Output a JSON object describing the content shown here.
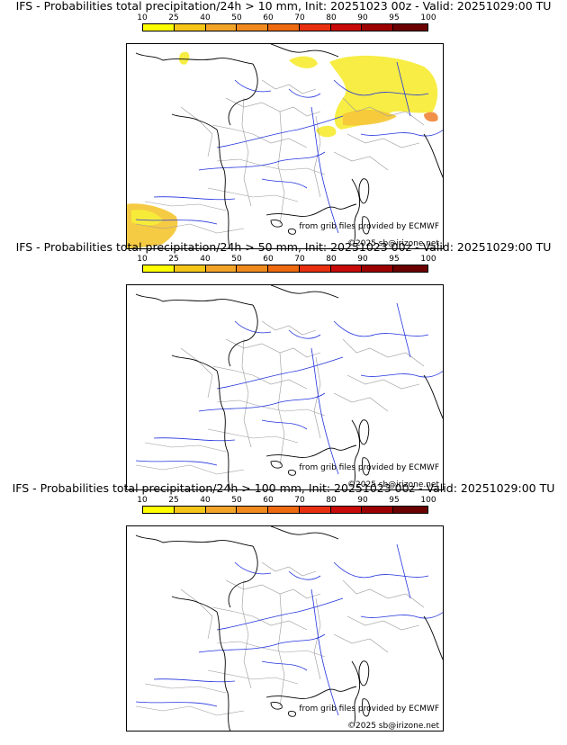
{
  "panels": [
    {
      "title": "IFS - Probabilities total precipitation/24h > 10 mm, Init: 20251023 00z - Valid: 20251029:00 TU",
      "threshold": "10 mm",
      "has_precip": true
    },
    {
      "title": "IFS - Probabilities total precipitation/24h > 50 mm, Init: 20251023 00z - Valid: 20251029:00 TU",
      "threshold": "50 mm",
      "has_precip": false
    },
    {
      "title": "IFS - Probabilities total precipitation/24h > 100 mm, Init: 20251023 00z - Valid: 20251029:00 TU",
      "threshold": "100 mm",
      "has_precip": false
    }
  ],
  "legend": {
    "ticks": [
      "10",
      "25",
      "40",
      "50",
      "60",
      "70",
      "80",
      "90",
      "95",
      "100"
    ],
    "colors": [
      "#ffff00",
      "#f5c518",
      "#f2a428",
      "#f08a1e",
      "#ee6a10",
      "#e83010",
      "#c80a0a",
      "#9c0000",
      "#6a0000"
    ]
  },
  "credits": {
    "source": "from grib files provided by ECMWF",
    "copyright": "©2025 sb@irizone.net"
  },
  "map_colors": {
    "coast": "#000000",
    "rivers": "#2233dd",
    "borders": "#9a9a9a",
    "precip_light": "#f7ec3a",
    "precip_mid": "#f5c83a",
    "precip_high": "#f08a40"
  }
}
